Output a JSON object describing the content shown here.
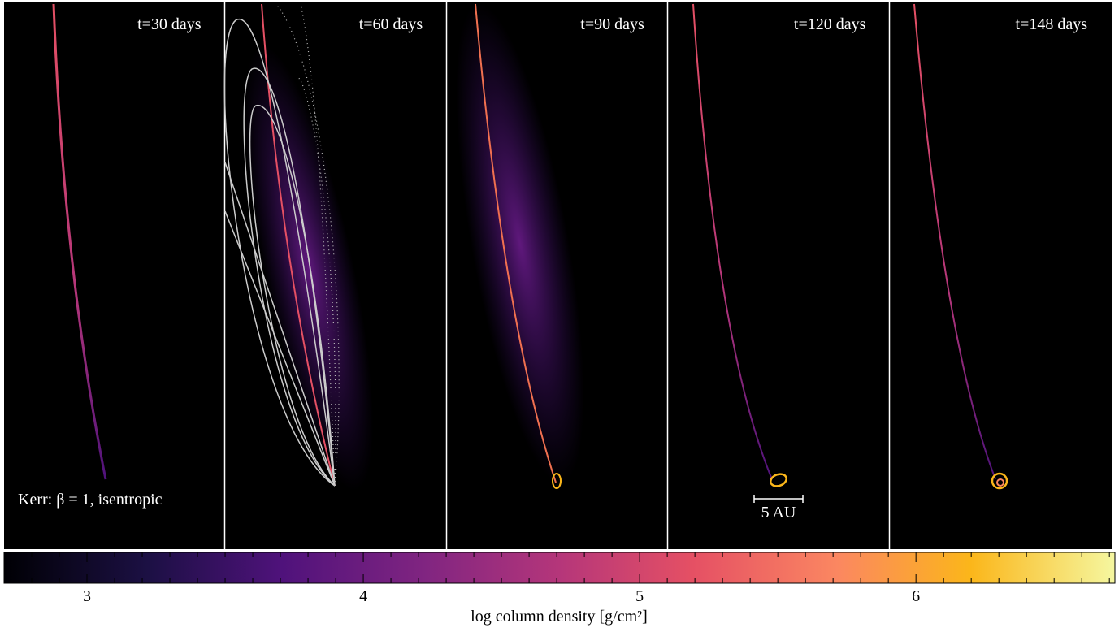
{
  "panels": [
    {
      "label": "t=30 days"
    },
    {
      "label": "t=60 days"
    },
    {
      "label": "t=90 days"
    },
    {
      "label": "t=120 days"
    },
    {
      "label": "t=148 days"
    }
  ],
  "annotation": "Kerr: β = 1, isentropic",
  "scale_bar": "5 AU",
  "colorbar": {
    "label": "log column density [g/cm²]",
    "lim": [
      2.7,
      6.72
    ],
    "ticks": [
      3,
      4,
      5,
      6
    ],
    "minor_ticks": [
      2.8,
      2.9,
      3.1,
      3.2,
      3.3,
      3.4,
      3.5,
      3.6,
      3.7,
      3.8,
      3.9,
      4.1,
      4.2,
      4.3,
      4.4,
      4.5,
      4.6,
      4.7,
      4.8,
      4.9,
      5.1,
      5.2,
      5.3,
      5.4,
      5.5,
      5.6,
      5.7,
      5.8,
      5.9,
      6.1,
      6.2,
      6.3,
      6.4,
      6.5,
      6.6,
      6.7
    ]
  }
}
